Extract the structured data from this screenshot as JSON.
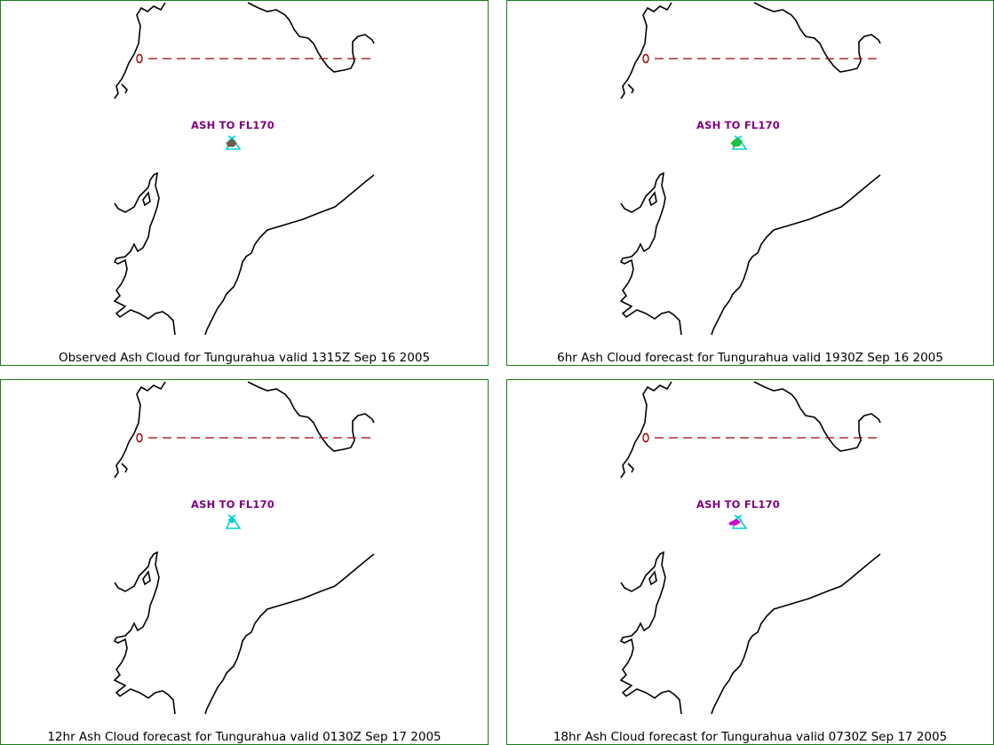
{
  "panels": [
    {
      "label": "ASH TO FL170",
      "caption": "Observed Ash Cloud for Tungurahua valid 1315Z Sep 16 2005",
      "ash_color": "#6e5c48"
    },
    {
      "label": "ASH TO FL170",
      "caption": "6hr Ash Cloud forecast for Tungurahua valid 1930Z Sep 16 2005",
      "ash_color": "#1fbf3f"
    },
    {
      "label": "ASH TO FL170",
      "caption": "12hr Ash Cloud forecast for Tungurahua valid 0130Z Sep 17 2005",
      "ash_color": "#00d0d0"
    },
    {
      "label": "ASH TO FL170",
      "caption": "18hr Ash Cloud forecast for Tungurahua valid 0730Z Sep 17 2005",
      "ash_color": "#d000d0"
    }
  ],
  "colors": {
    "border": "#1f7a1f",
    "coast": "#000000",
    "equator": "#a00000",
    "volcano": "#00d0d0",
    "label": "#800080"
  },
  "icons": {
    "volcano": "volcano-triangle-icon",
    "equator_marker": "equator-zero-icon"
  }
}
